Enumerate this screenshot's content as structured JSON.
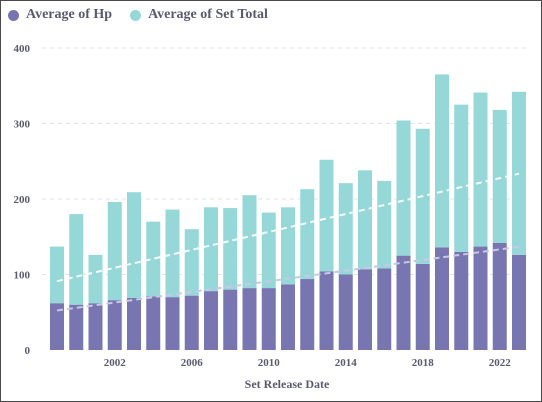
{
  "chart_data": {
    "type": "bar",
    "stacked": true,
    "xlabel": "Set Release Date",
    "ylabel": "",
    "ylim": [
      0,
      400
    ],
    "yticks": [
      0,
      100,
      200,
      300,
      400
    ],
    "x": [
      1999,
      2000,
      2001,
      2002,
      2003,
      2004,
      2005,
      2006,
      2007,
      2008,
      2009,
      2010,
      2011,
      2012,
      2013,
      2014,
      2015,
      2016,
      2017,
      2018,
      2019,
      2020,
      2021,
      2022,
      2023
    ],
    "xticks": [
      "2002",
      "2006",
      "2010",
      "2014",
      "2018",
      "2022"
    ],
    "grid": "horizontal dashed",
    "legend": "top-left",
    "trendlines": true,
    "series": [
      {
        "name": "Average of Hp",
        "color": "#7875b1",
        "values": [
          62,
          60,
          62,
          66,
          69,
          71,
          70,
          72,
          78,
          80,
          82,
          82,
          87,
          94,
          104,
          100,
          107,
          108,
          125,
          114,
          136,
          130,
          137,
          142,
          126
        ]
      },
      {
        "name": "Average of Set Total",
        "color": "#96d8d8",
        "values": [
          75,
          120,
          64,
          130,
          140,
          99,
          116,
          88,
          111,
          108,
          123,
          100,
          102,
          119,
          148,
          121,
          131,
          116,
          179,
          179,
          229,
          195,
          204,
          176,
          216
        ]
      }
    ]
  }
}
